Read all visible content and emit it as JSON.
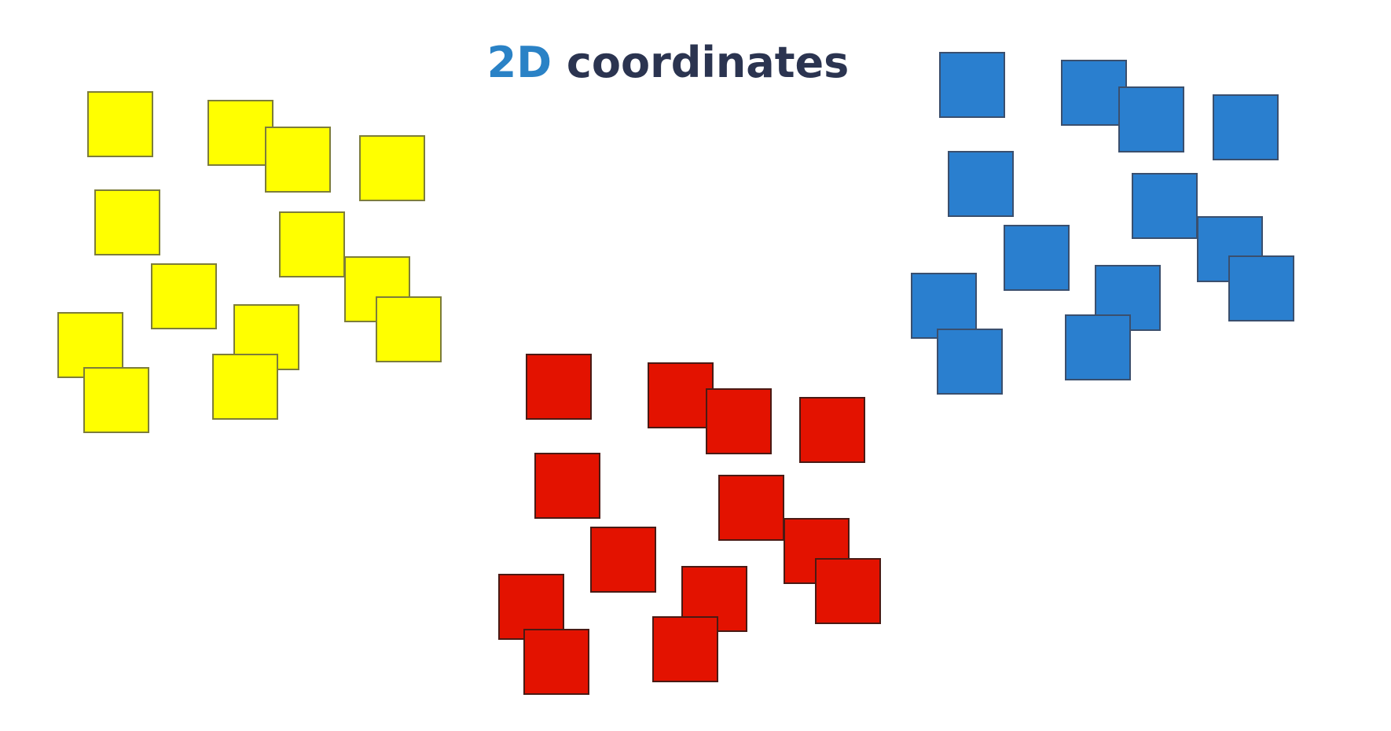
{
  "title": {
    "highlight": "2D",
    "rest": " coordinates"
  },
  "clusters": [
    {
      "name": "yellow",
      "color": "#ffff00",
      "border": "#7d7d3a",
      "count": 13
    },
    {
      "name": "blue",
      "color": "#2a7fcf",
      "border": "#3a4f6e",
      "count": 13
    },
    {
      "name": "red",
      "color": "#e31200",
      "border": "#4a1a14",
      "count": 13
    }
  ]
}
